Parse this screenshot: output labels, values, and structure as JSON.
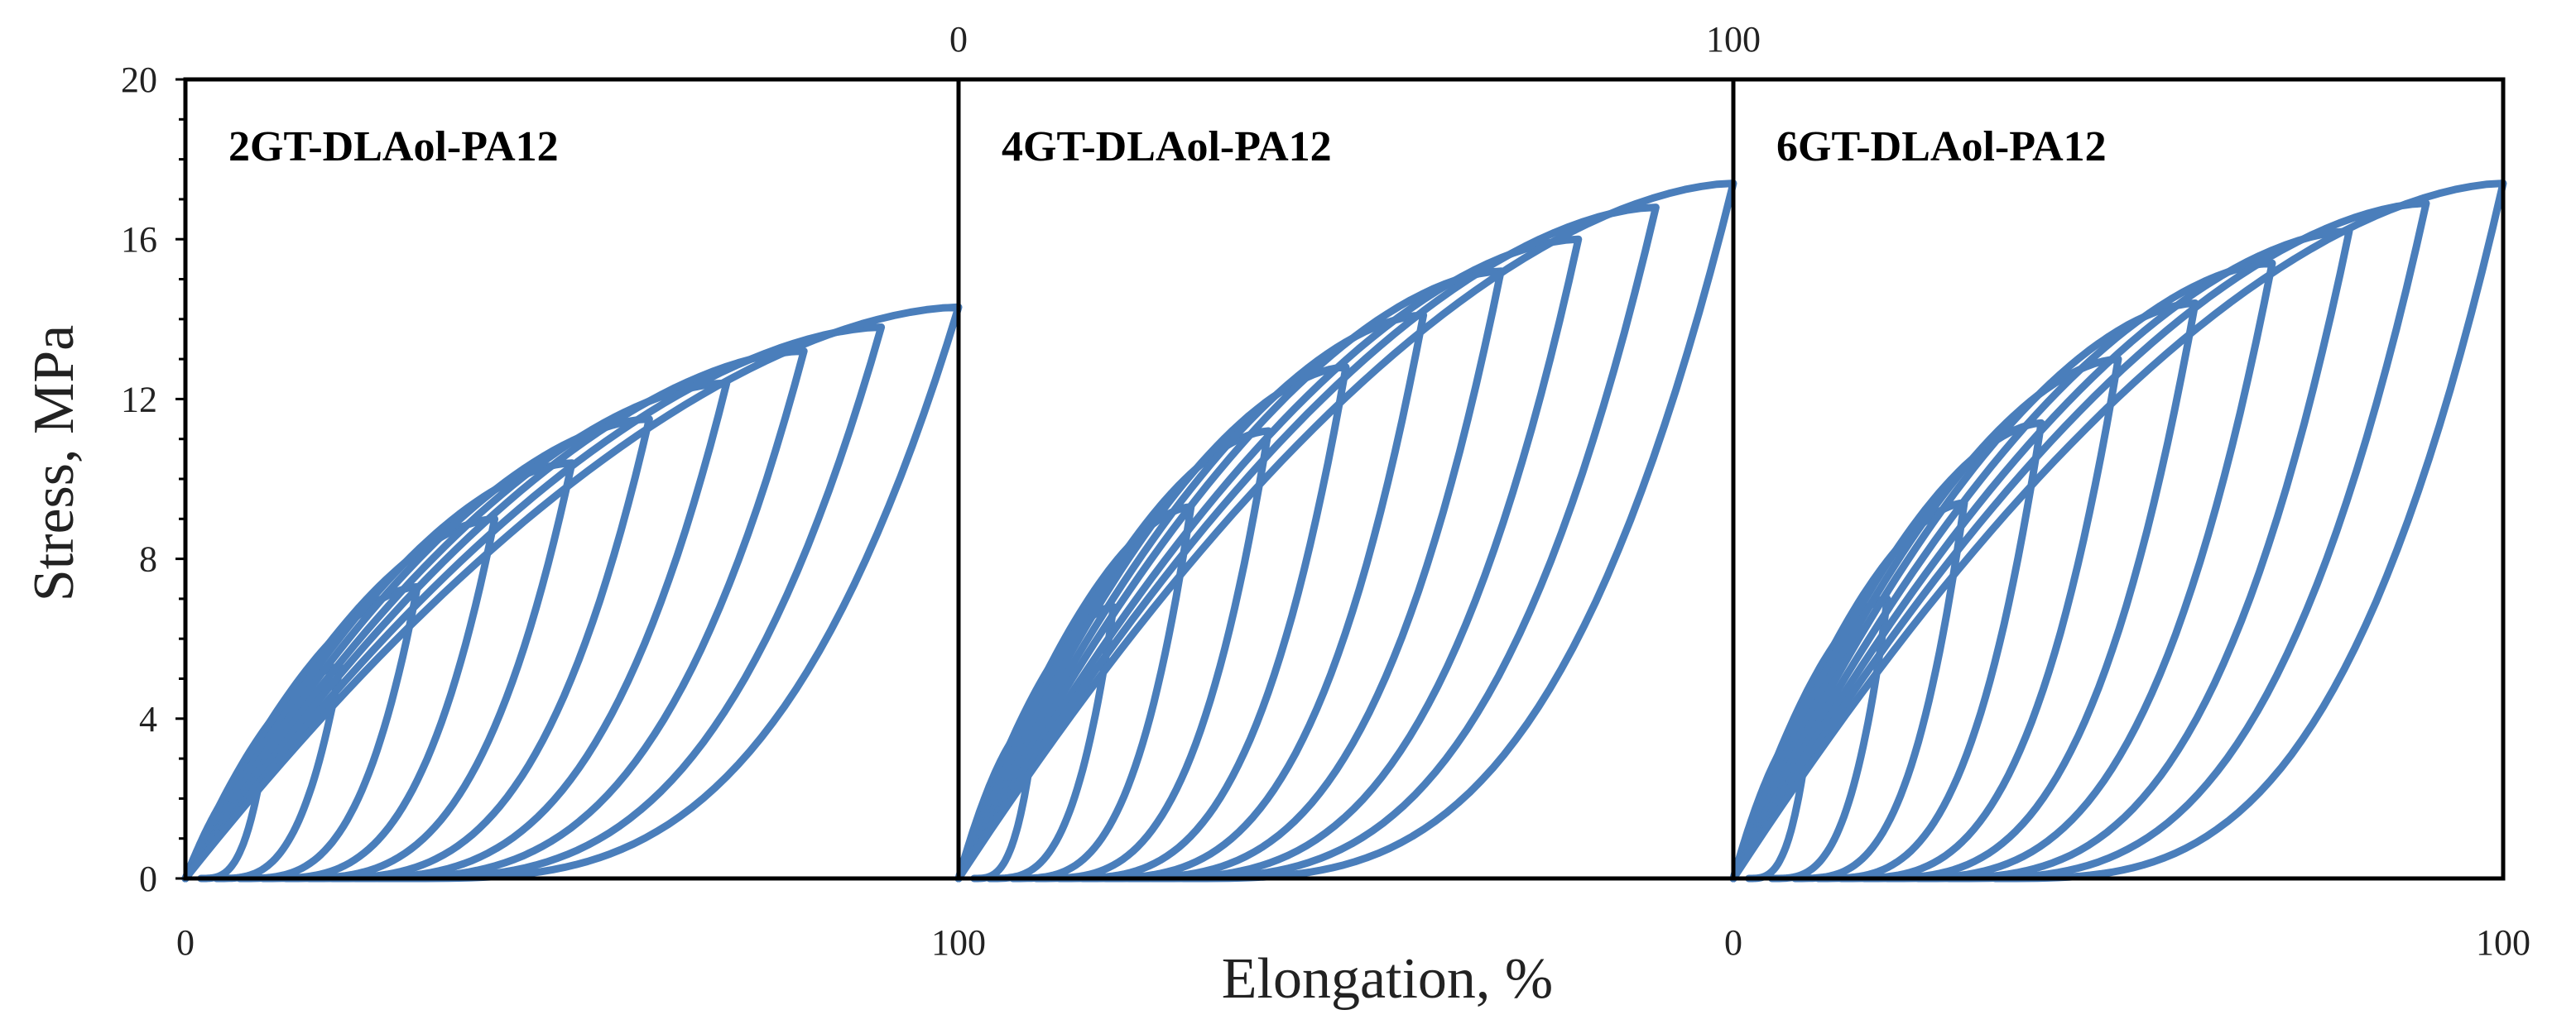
{
  "chart_data": {
    "type": "line",
    "ylabel": "Stress, MPa",
    "xlabel": "Elongation, %",
    "ylim": [
      0,
      20
    ],
    "yticks": [
      "0",
      "4",
      "8",
      "12",
      "16",
      "20"
    ],
    "x_tick_labels_bottom": [
      "0",
      "100",
      "0",
      "100"
    ],
    "x_tick_labels_top": [
      "0",
      "100"
    ],
    "grid": false,
    "color": "#4a7ebb",
    "panels": [
      {
        "label": "2GT-DLAol-PA12",
        "xlim": [
          0,
          100
        ],
        "cycles": [
          {
            "max_strain": 10,
            "peak_stress": 2.9,
            "residual_strain": 2
          },
          {
            "max_strain": 20,
            "peak_stress": 5.3,
            "residual_strain": 4
          },
          {
            "max_strain": 30,
            "peak_stress": 7.3,
            "residual_strain": 7
          },
          {
            "max_strain": 40,
            "peak_stress": 9.0,
            "residual_strain": 10
          },
          {
            "max_strain": 50,
            "peak_stress": 10.4,
            "residual_strain": 13
          },
          {
            "max_strain": 60,
            "peak_stress": 11.5,
            "residual_strain": 16
          },
          {
            "max_strain": 70,
            "peak_stress": 12.4,
            "residual_strain": 19
          },
          {
            "max_strain": 80,
            "peak_stress": 13.2,
            "residual_strain": 22
          },
          {
            "max_strain": 90,
            "peak_stress": 13.8,
            "residual_strain": 25
          },
          {
            "max_strain": 100,
            "peak_stress": 14.3,
            "residual_strain": 28
          }
        ]
      },
      {
        "label": "4GT-DLAol-PA12",
        "xlim": [
          0,
          100
        ],
        "cycles": [
          {
            "max_strain": 10,
            "peak_stress": 4.0,
            "residual_strain": 2
          },
          {
            "max_strain": 20,
            "peak_stress": 6.8,
            "residual_strain": 4
          },
          {
            "max_strain": 30,
            "peak_stress": 9.3,
            "residual_strain": 7
          },
          {
            "max_strain": 40,
            "peak_stress": 11.2,
            "residual_strain": 10
          },
          {
            "max_strain": 50,
            "peak_stress": 12.8,
            "residual_strain": 13
          },
          {
            "max_strain": 60,
            "peak_stress": 14.1,
            "residual_strain": 16
          },
          {
            "max_strain": 70,
            "peak_stress": 15.2,
            "residual_strain": 19
          },
          {
            "max_strain": 80,
            "peak_stress": 16.0,
            "residual_strain": 22
          },
          {
            "max_strain": 90,
            "peak_stress": 16.8,
            "residual_strain": 25
          },
          {
            "max_strain": 100,
            "peak_stress": 17.4,
            "residual_strain": 29
          }
        ]
      },
      {
        "label": "6GT-DLAol-PA12",
        "xlim": [
          0,
          100
        ],
        "cycles": [
          {
            "max_strain": 10,
            "peak_stress": 4.0,
            "residual_strain": 2
          },
          {
            "max_strain": 20,
            "peak_stress": 7.0,
            "residual_strain": 5
          },
          {
            "max_strain": 30,
            "peak_stress": 9.4,
            "residual_strain": 8
          },
          {
            "max_strain": 40,
            "peak_stress": 11.4,
            "residual_strain": 11
          },
          {
            "max_strain": 50,
            "peak_stress": 13.0,
            "residual_strain": 14
          },
          {
            "max_strain": 60,
            "peak_stress": 14.4,
            "residual_strain": 17
          },
          {
            "max_strain": 70,
            "peak_stress": 15.4,
            "residual_strain": 20
          },
          {
            "max_strain": 80,
            "peak_stress": 16.2,
            "residual_strain": 24
          },
          {
            "max_strain": 90,
            "peak_stress": 16.9,
            "residual_strain": 28
          },
          {
            "max_strain": 100,
            "peak_stress": 17.4,
            "residual_strain": 34
          }
        ]
      }
    ]
  }
}
